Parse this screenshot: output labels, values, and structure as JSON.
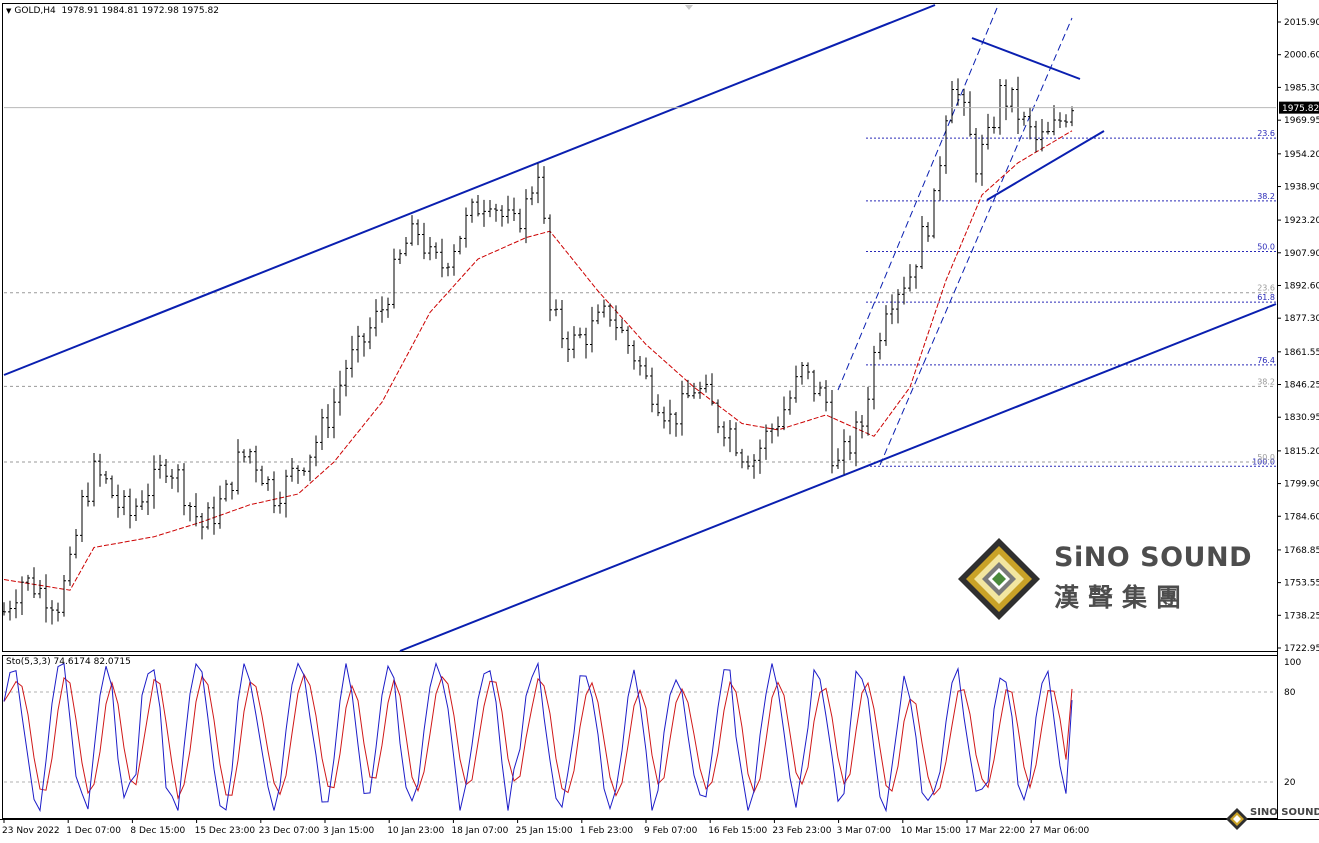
{
  "header": {
    "symbol": "GOLD,H4",
    "ohlc": "1978.91 1984.81 1972.98 1975.82"
  },
  "oscillator": {
    "label": "Sto(5,3,3) 74.6174 82.0715",
    "levels": [
      "100",
      "80",
      "20"
    ],
    "main_color": "#1c1cc8",
    "signal_color": "#d01818"
  },
  "price_axis": {
    "labels": [
      "2015.90",
      "2000.60",
      "1985.30",
      "1969.95",
      "1954.20",
      "1938.90",
      "1923.20",
      "1907.90",
      "1892.60",
      "1877.30",
      "1861.55",
      "1846.25",
      "1830.95",
      "1815.20",
      "1799.90",
      "1784.60",
      "1768.85",
      "1753.55",
      "1738.25",
      "1722.95"
    ],
    "current_price": "1975.82"
  },
  "time_axis": {
    "labels": [
      "23 Nov 2022",
      "1 Dec 07:00",
      "8 Dec 15:00",
      "15 Dec 23:00",
      "23 Dec 07:00",
      "3 Jan 15:00",
      "10 Jan 23:00",
      "18 Jan 07:00",
      "25 Jan 15:00",
      "1 Feb 23:00",
      "9 Feb 07:00",
      "16 Feb 15:00",
      "23 Feb 23:00",
      "3 Mar 07:00",
      "10 Mar 15:00",
      "17 Mar 22:00",
      "27 Mar 06:00"
    ]
  },
  "fib_levels": {
    "blue": [
      "23.6",
      "38.2",
      "50.0",
      "61.8",
      "76.4",
      "100.0"
    ],
    "gray": [
      "23.6",
      "38.2",
      "50.0"
    ]
  },
  "watermark": {
    "brand_en": "SiNO SOUND",
    "brand_zh": "漢聲集團",
    "mini": "SINO SOUND"
  },
  "colors": {
    "candle": "#000000",
    "trendline": "#0a1fb0",
    "moving_average": "#cc0000",
    "fib_blue": "#2a2ab8",
    "fib_gray": "#9a9a9a"
  },
  "chart_data": {
    "type": "candlestick",
    "symbol": "GOLD",
    "timeframe": "H4",
    "ylim": [
      1722.95,
      2015.9
    ],
    "x_dates": [
      "23 Nov 2022",
      "1 Dec 07:00",
      "8 Dec 15:00",
      "15 Dec 23:00",
      "23 Dec 07:00",
      "3 Jan 15:00",
      "10 Jan 23:00",
      "18 Jan 07:00",
      "25 Jan 15:00",
      "1 Feb 23:00",
      "9 Feb 07:00",
      "16 Feb 15:00",
      "23 Feb 23:00",
      "3 Mar 07:00",
      "10 Mar 15:00",
      "17 Mar 22:00",
      "27 Mar 06:00"
    ],
    "price_path": [
      [
        0,
        1740
      ],
      [
        3,
        1755
      ],
      [
        5,
        1752
      ],
      [
        7,
        1748
      ],
      [
        9,
        1744
      ],
      [
        11,
        1760
      ],
      [
        13,
        1790
      ],
      [
        15,
        1805
      ],
      [
        17,
        1800
      ],
      [
        19,
        1790
      ],
      [
        21,
        1785
      ],
      [
        23,
        1795
      ],
      [
        25,
        1800
      ],
      [
        27,
        1810
      ],
      [
        29,
        1803
      ],
      [
        31,
        1790
      ],
      [
        33,
        1780
      ],
      [
        35,
        1786
      ],
      [
        37,
        1795
      ],
      [
        39,
        1810
      ],
      [
        41,
        1815
      ],
      [
        43,
        1805
      ],
      [
        45,
        1795
      ],
      [
        47,
        1800
      ],
      [
        49,
        1808
      ],
      [
        51,
        1815
      ],
      [
        53,
        1825
      ],
      [
        55,
        1838
      ],
      [
        57,
        1855
      ],
      [
        59,
        1862
      ],
      [
        61,
        1872
      ],
      [
        63,
        1882
      ],
      [
        65,
        1898
      ],
      [
        67,
        1912
      ],
      [
        69,
        1918
      ],
      [
        71,
        1905
      ],
      [
        73,
        1902
      ],
      [
        75,
        1912
      ],
      [
        77,
        1922
      ],
      [
        79,
        1930
      ],
      [
        81,
        1935
      ],
      [
        83,
        1925
      ],
      [
        85,
        1920
      ],
      [
        87,
        1930
      ],
      [
        89,
        1948
      ],
      [
        90,
        1920
      ],
      [
        91,
        1880
      ],
      [
        93,
        1870
      ],
      [
        95,
        1866
      ],
      [
        97,
        1870
      ],
      [
        99,
        1875
      ],
      [
        101,
        1880
      ],
      [
        103,
        1870
      ],
      [
        105,
        1860
      ],
      [
        107,
        1848
      ],
      [
        109,
        1840
      ],
      [
        111,
        1830
      ],
      [
        113,
        1835
      ],
      [
        115,
        1845
      ],
      [
        117,
        1840
      ],
      [
        119,
        1830
      ],
      [
        121,
        1825
      ],
      [
        123,
        1815
      ],
      [
        125,
        1812
      ],
      [
        127,
        1822
      ],
      [
        129,
        1830
      ],
      [
        131,
        1840
      ],
      [
        133,
        1852
      ],
      [
        135,
        1845
      ],
      [
        137,
        1838
      ],
      [
        138,
        1815
      ],
      [
        139,
        1808
      ],
      [
        141,
        1818
      ],
      [
        143,
        1828
      ],
      [
        145,
        1860
      ],
      [
        147,
        1885
      ],
      [
        149,
        1892
      ],
      [
        151,
        1898
      ],
      [
        153,
        1915
      ],
      [
        155,
        1930
      ],
      [
        157,
        1975
      ],
      [
        158,
        1990
      ],
      [
        160,
        1972
      ],
      [
        162,
        1950
      ],
      [
        164,
        1960
      ],
      [
        166,
        1982
      ],
      [
        168,
        1978
      ],
      [
        170,
        1968
      ],
      [
        172,
        1960
      ],
      [
        174,
        1962
      ],
      [
        176,
        1970
      ],
      [
        178,
        1978
      ]
    ],
    "moving_average_path": [
      [
        0,
        1755
      ],
      [
        11,
        1750
      ],
      [
        15,
        1770
      ],
      [
        25,
        1775
      ],
      [
        33,
        1782
      ],
      [
        41,
        1790
      ],
      [
        49,
        1795
      ],
      [
        55,
        1810
      ],
      [
        63,
        1838
      ],
      [
        71,
        1880
      ],
      [
        79,
        1905
      ],
      [
        87,
        1915
      ],
      [
        91,
        1918
      ],
      [
        99,
        1890
      ],
      [
        107,
        1865
      ],
      [
        115,
        1845
      ],
      [
        123,
        1828
      ],
      [
        129,
        1825
      ],
      [
        137,
        1832
      ],
      [
        145,
        1822
      ],
      [
        151,
        1845
      ],
      [
        157,
        1895
      ],
      [
        163,
        1935
      ],
      [
        169,
        1950
      ],
      [
        178,
        1965
      ]
    ],
    "stochastic": {
      "params": "5,3,3",
      "main": 74.6174,
      "signal": 82.0715,
      "levels": [
        100,
        80,
        20
      ]
    },
    "fibonacci": {
      "swing_low": 1808,
      "swing_high": 2009,
      "ratios": [
        23.6,
        38.2,
        50.0,
        61.8,
        76.4,
        100.0
      ]
    },
    "annotations": [
      "ascending channel",
      "triangle consolidation",
      "fibonacci retracement"
    ]
  }
}
